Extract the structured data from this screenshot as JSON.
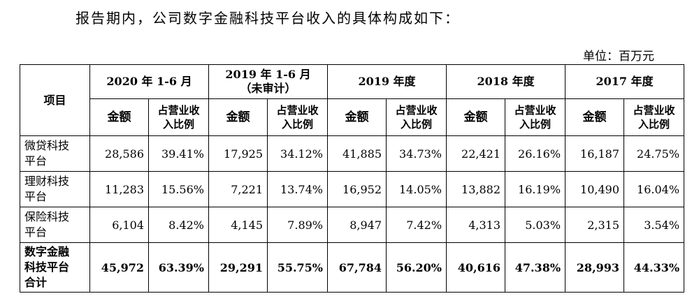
{
  "intro": "报告期内，公司数字金融科技平台收入的具体构成如下：",
  "unit": "单位：百万元",
  "table": {
    "item_header": "项目",
    "periods": [
      {
        "name": "2020 年 1-6 月",
        "note": ""
      },
      {
        "name": "2019 年 1-6 月",
        "note": "（未审计）"
      },
      {
        "name": "2019 年度",
        "note": ""
      },
      {
        "name": "2018 年度",
        "note": ""
      },
      {
        "name": "2017 年度",
        "note": ""
      }
    ],
    "sub_headers": {
      "amount": "金额",
      "ratio_line1": "占营业收",
      "ratio_line2": "入比例"
    },
    "rows": [
      {
        "label_line1": "微贷科技",
        "label_line2": "平台",
        "label_line3": "",
        "cells": [
          "28,586",
          "39.41%",
          "17,925",
          "34.12%",
          "41,885",
          "34.73%",
          "22,421",
          "26.16%",
          "16,187",
          "24.75%"
        ]
      },
      {
        "label_line1": "理财科技",
        "label_line2": "平台",
        "label_line3": "",
        "cells": [
          "11,283",
          "15.56%",
          "7,221",
          "13.74%",
          "16,952",
          "14.05%",
          "13,882",
          "16.19%",
          "10,490",
          "16.04%"
        ]
      },
      {
        "label_line1": "保险科技",
        "label_line2": "平台",
        "label_line3": "",
        "cells": [
          "6,104",
          "8.42%",
          "4,145",
          "7.89%",
          "8,947",
          "7.42%",
          "4,313",
          "5.03%",
          "2,315",
          "3.54%"
        ]
      },
      {
        "label_line1": "数字金融",
        "label_line2": "科技平台",
        "label_line3": "合计",
        "cells": [
          "45,972",
          "63.39%",
          "29,291",
          "55.75%",
          "67,784",
          "56.20%",
          "40,616",
          "47.38%",
          "28,993",
          "44.33%"
        ]
      }
    ]
  }
}
